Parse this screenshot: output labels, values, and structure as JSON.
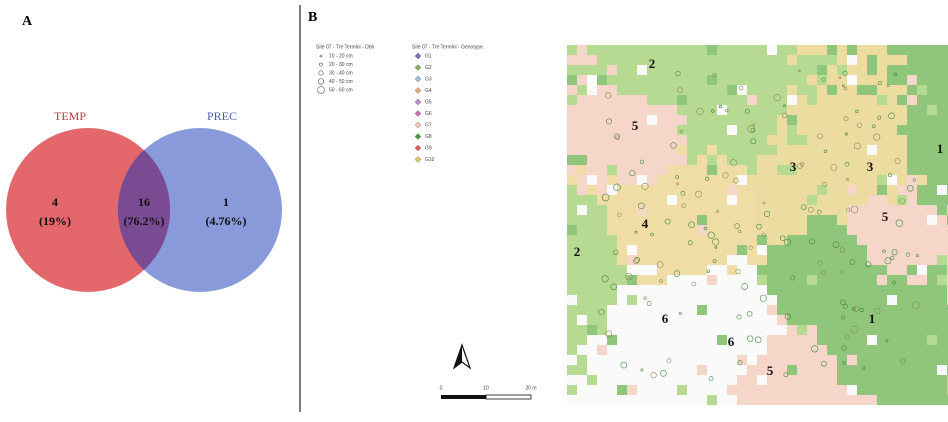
{
  "panel_a": {
    "label": "A",
    "sets": [
      {
        "name": "TEMP",
        "color": "#e0565b"
      },
      {
        "name": "PREC",
        "color": "#7b8fd6"
      }
    ],
    "regions": [
      {
        "count": "4",
        "percent": "(19%)"
      },
      {
        "count": "16",
        "percent": "(76.2%)"
      },
      {
        "count": "1",
        "percent": "(4.76%)"
      }
    ]
  },
  "panel_b": {
    "label": "B",
    "legend_dbh": {
      "title": "Site 07 - Tre Termini - Dbh",
      "items": [
        "10 - 20 cm",
        "20 - 30 cm",
        "30 - 40 cm",
        "40 - 50 cm",
        "50 - 60 cm"
      ]
    },
    "legend_genotype": {
      "title": "Site 07 - Tre Termini - Genotype",
      "items": [
        {
          "name": "G1",
          "color": "#7f6fb2"
        },
        {
          "name": "G2",
          "color": "#8fae5a"
        },
        {
          "name": "G3",
          "color": "#9ec3d8"
        },
        {
          "name": "G4",
          "color": "#e8a87c"
        },
        {
          "name": "G5",
          "color": "#b58fd0"
        },
        {
          "name": "G6",
          "color": "#c86bb0"
        },
        {
          "name": "G7",
          "color": "#f2c9b0"
        },
        {
          "name": "G8",
          "color": "#4f9a4a"
        },
        {
          "name": "G9",
          "color": "#e05a5a"
        },
        {
          "name": "G10",
          "color": "#e3c86a"
        }
      ]
    },
    "scale_bar": [
      "0",
      "10",
      "20 m"
    ],
    "zones": [
      "2",
      "5",
      "3",
      "3",
      "1",
      "4",
      "5",
      "2",
      "6",
      "6",
      "1",
      "5"
    ]
  }
}
